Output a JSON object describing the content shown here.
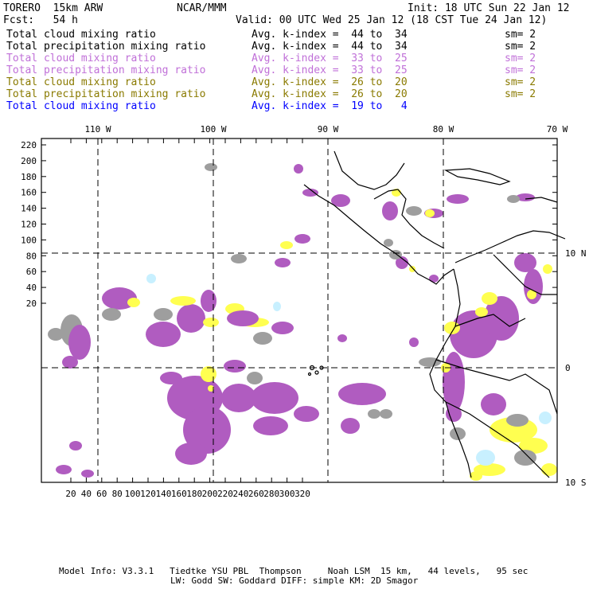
{
  "header": {
    "model": "TORERO  15km ARW",
    "org": "NCAR/MMM",
    "init": "Init: 18 UTC Sun 22 Jan 12",
    "fcst": "Fcst:   54 h",
    "valid": "Valid: 00 UTC Wed 25 Jan 12 (18 CST Tue 24 Jan 12)"
  },
  "legend_rows": [
    {
      "name": "Total cloud mixing ratio",
      "kindex": "Avg. k-index =  44 to  34",
      "sm": "sm= 2",
      "color": "#000000"
    },
    {
      "name": "Total precipitation mixing ratio",
      "kindex": "Avg. k-index =  44 to  34",
      "sm": "sm= 2",
      "color": "#000000"
    },
    {
      "name": "Total cloud mixing ratio",
      "kindex": "Avg. k-index =  33 to  25",
      "sm": "sm= 2",
      "color": "#c070d8"
    },
    {
      "name": "Total precipitation mixing ratio",
      "kindex": "Avg. k-index =  33 to  25",
      "sm": "sm= 2",
      "color": "#c070d8"
    },
    {
      "name": "Total cloud mixing ratio",
      "kindex": "Avg. k-index =  26 to  20",
      "sm": "sm= 2",
      "color": "#8a7a00"
    },
    {
      "name": "Total precipitation mixing ratio",
      "kindex": "Avg. k-index =  26 to  20",
      "sm": "sm= 2",
      "color": "#8a7a00"
    },
    {
      "name": "Total cloud mixing ratio",
      "kindex": "Avg. k-index =  19 to   4",
      "sm": "",
      "color": "#0000ff"
    }
  ],
  "map": {
    "top_lon_labels": [
      "110 W",
      "100 W",
      "90 W",
      "80 W",
      "70 W"
    ],
    "right_lat_labels": [
      "10 N",
      "0",
      "10 S"
    ],
    "y_ticks": [
      "220",
      "200",
      "180",
      "160",
      "140",
      "120",
      "100",
      "80",
      "60",
      "40",
      "20"
    ],
    "x_ticks": [
      "20",
      "40",
      "60",
      "80",
      "100",
      "120",
      "140",
      "160",
      "180",
      "200",
      "220",
      "240",
      "260",
      "280",
      "300",
      "320"
    ],
    "field_colors": {
      "gray": "#9e9e9e",
      "purple": "#b05cc0",
      "yellow": "#ffff50",
      "cyan": "#c8f0ff"
    }
  },
  "footer": {
    "line1": "Model Info: V3.3.1   Tiedtke YSU PBL  Thompson     Noah LSM  15 km,   44 levels,   95 sec",
    "line2": "LW: Godd SW: Goddard DIFF: simple KM: 2D Smagor"
  }
}
